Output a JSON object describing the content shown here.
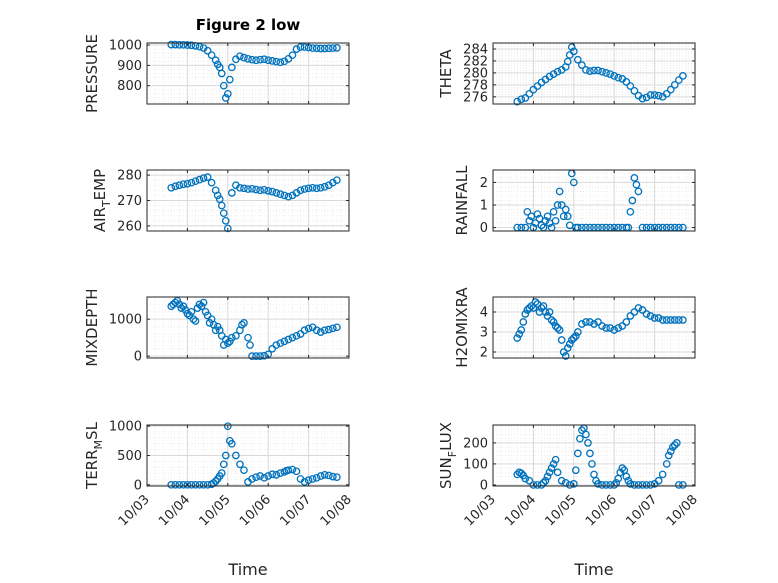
{
  "figure_title": "Figure 2 low",
  "marker_color": "#0072BD",
  "x_label": "Time",
  "x_ticks": [
    "10/03",
    "10/04",
    "10/05",
    "10/06",
    "10/07",
    "10/08"
  ],
  "grid": true,
  "chart_data": [
    {
      "type": "scatter",
      "ylabel": "PRESSURE",
      "title": "Figure 2 low",
      "xlim": [
        0,
        5
      ],
      "ylim": [
        710,
        1010
      ],
      "yticks": [
        800,
        900,
        1000
      ],
      "grid": true,
      "x": [
        0.6,
        0.7,
        0.8,
        0.9,
        1.0,
        1.1,
        1.2,
        1.3,
        1.4,
        1.5,
        1.6,
        1.7,
        1.75,
        1.8,
        1.85,
        1.9,
        1.95,
        2.0,
        2.05,
        2.1,
        2.2,
        2.3,
        2.4,
        2.5,
        2.6,
        2.7,
        2.8,
        2.9,
        3.0,
        3.1,
        3.2,
        3.3,
        3.4,
        3.5,
        3.6,
        3.7,
        3.8,
        3.9,
        4.0,
        4.1,
        4.2,
        4.3,
        4.4,
        4.5,
        4.6,
        4.7
      ],
      "y": [
        1002,
        1002,
        1001,
        1001,
        1000,
        999,
        996,
        992,
        985,
        972,
        950,
        925,
        905,
        890,
        860,
        800,
        740,
        760,
        830,
        890,
        930,
        945,
        938,
        932,
        928,
        925,
        928,
        930,
        925,
        922,
        918,
        915,
        920,
        932,
        950,
        980,
        990,
        990,
        988,
        985,
        984,
        983,
        983,
        984,
        985,
        986
      ]
    },
    {
      "type": "scatter",
      "ylabel": "THETA",
      "xlim": [
        0,
        5
      ],
      "ylim": [
        274.8,
        285
      ],
      "yticks": [
        276,
        278,
        280,
        282,
        284
      ],
      "grid": true,
      "x": [
        0.6,
        0.7,
        0.8,
        0.9,
        1.0,
        1.1,
        1.2,
        1.3,
        1.4,
        1.5,
        1.6,
        1.7,
        1.8,
        1.85,
        1.9,
        1.95,
        2.0,
        2.1,
        2.2,
        2.3,
        2.4,
        2.5,
        2.6,
        2.7,
        2.8,
        2.9,
        3.0,
        3.1,
        3.2,
        3.3,
        3.4,
        3.5,
        3.6,
        3.7,
        3.8,
        3.9,
        4.0,
        4.1,
        4.2,
        4.3,
        4.4,
        4.5,
        4.6,
        4.7
      ],
      "y": [
        275.2,
        275.6,
        275.8,
        276.5,
        277.2,
        277.8,
        278.4,
        278.9,
        279.4,
        279.8,
        280.2,
        280.5,
        281.0,
        281.9,
        283.0,
        284.3,
        283.6,
        282.2,
        281.3,
        280.5,
        280.3,
        280.4,
        280.4,
        280.2,
        280.0,
        279.8,
        279.5,
        279.2,
        279.0,
        278.5,
        277.8,
        277.0,
        276.2,
        275.7,
        275.9,
        276.3,
        276.3,
        276.2,
        276.0,
        276.5,
        277.2,
        278.0,
        278.8,
        279.5
      ]
    },
    {
      "type": "scatter",
      "ylabel": "AIR_TEMP",
      "xlim": [
        0,
        5
      ],
      "ylim": [
        258,
        282
      ],
      "yticks": [
        260,
        270,
        280
      ],
      "grid": true,
      "x": [
        0.6,
        0.7,
        0.8,
        0.9,
        1.0,
        1.1,
        1.2,
        1.3,
        1.4,
        1.5,
        1.6,
        1.7,
        1.75,
        1.8,
        1.85,
        1.9,
        1.95,
        2.0,
        2.1,
        2.2,
        2.3,
        2.4,
        2.5,
        2.6,
        2.7,
        2.8,
        2.9,
        3.0,
        3.1,
        3.2,
        3.3,
        3.4,
        3.5,
        3.6,
        3.7,
        3.8,
        3.9,
        4.0,
        4.1,
        4.2,
        4.3,
        4.4,
        4.5,
        4.6,
        4.7
      ],
      "y": [
        275.0,
        275.6,
        276.0,
        276.4,
        276.6,
        277.0,
        277.6,
        278.2,
        278.8,
        279.2,
        277.0,
        274.0,
        272.0,
        270.5,
        268.0,
        265.0,
        262.0,
        259.0,
        273.0,
        276.0,
        275.0,
        274.8,
        274.5,
        274.6,
        274.3,
        274.0,
        274.2,
        273.8,
        273.5,
        273.0,
        272.5,
        272.0,
        271.5,
        272.0,
        273.0,
        274.0,
        274.5,
        274.8,
        275.0,
        274.8,
        275.0,
        275.4,
        276.0,
        277.0,
        278.0
      ]
    },
    {
      "type": "scatter",
      "ylabel": "RAINFALL",
      "xlim": [
        0,
        5
      ],
      "ylim": [
        -0.15,
        2.55
      ],
      "yticks": [
        0,
        1,
        2
      ],
      "grid": true,
      "x": [
        0.6,
        0.7,
        0.8,
        0.85,
        0.9,
        0.95,
        1.0,
        1.05,
        1.1,
        1.15,
        1.2,
        1.25,
        1.3,
        1.35,
        1.4,
        1.45,
        1.5,
        1.55,
        1.6,
        1.65,
        1.7,
        1.75,
        1.8,
        1.85,
        1.9,
        1.95,
        2.0,
        2.05,
        2.1,
        2.2,
        2.3,
        2.4,
        2.5,
        2.6,
        2.7,
        2.8,
        2.9,
        3.0,
        3.1,
        3.2,
        3.3,
        3.35,
        3.4,
        3.45,
        3.5,
        3.55,
        3.6,
        3.7,
        3.8,
        3.9,
        4.0,
        4.1,
        4.2,
        4.3,
        4.4,
        4.5,
        4.6,
        4.7
      ],
      "y": [
        0,
        0,
        0,
        0.7,
        0.3,
        0.5,
        0,
        0.2,
        0.6,
        0.4,
        0.1,
        0,
        0.3,
        0.5,
        0.2,
        0,
        0.7,
        0.3,
        1.0,
        1.6,
        1.0,
        0.5,
        0.8,
        0.5,
        0.1,
        2.4,
        2.0,
        0,
        0,
        0,
        0,
        0,
        0,
        0,
        0,
        0,
        0,
        0,
        0,
        0,
        0,
        0,
        0.7,
        1.2,
        2.2,
        1.9,
        1.6,
        0,
        0,
        0,
        0,
        0,
        0,
        0,
        0,
        0,
        0,
        0
      ]
    },
    {
      "type": "scatter",
      "ylabel": "MIXDEPTH",
      "xlim": [
        0,
        5
      ],
      "ylim": [
        -50,
        1600
      ],
      "yticks": [
        0,
        1000
      ],
      "grid": true,
      "x": [
        0.6,
        0.65,
        0.7,
        0.75,
        0.8,
        0.85,
        0.9,
        0.95,
        1.0,
        1.05,
        1.1,
        1.15,
        1.2,
        1.25,
        1.3,
        1.35,
        1.4,
        1.45,
        1.5,
        1.55,
        1.6,
        1.65,
        1.7,
        1.75,
        1.8,
        1.85,
        1.9,
        1.95,
        2.0,
        2.05,
        2.1,
        2.2,
        2.3,
        2.35,
        2.4,
        2.5,
        2.55,
        2.6,
        2.7,
        2.8,
        2.9,
        3.0,
        3.1,
        3.2,
        3.3,
        3.4,
        3.5,
        3.6,
        3.7,
        3.8,
        3.9,
        4.0,
        4.1,
        4.2,
        4.3,
        4.4,
        4.5,
        4.6,
        4.7
      ],
      "y": [
        1350,
        1400,
        1450,
        1500,
        1400,
        1300,
        1350,
        1250,
        1150,
        1100,
        1200,
        1000,
        950,
        1300,
        1400,
        1350,
        1450,
        1200,
        1100,
        900,
        1000,
        850,
        700,
        800,
        700,
        550,
        300,
        450,
        350,
        400,
        500,
        550,
        700,
        850,
        900,
        500,
        300,
        0,
        0,
        0,
        10,
        50,
        200,
        300,
        350,
        400,
        450,
        500,
        550,
        600,
        700,
        750,
        780,
        700,
        650,
        700,
        720,
        750,
        780
      ]
    },
    {
      "type": "scatter",
      "ylabel": "H2OMIXRA",
      "xlim": [
        0,
        5
      ],
      "ylim": [
        1.7,
        4.75
      ],
      "yticks": [
        2,
        3,
        4
      ],
      "grid": true,
      "x": [
        0.6,
        0.65,
        0.7,
        0.75,
        0.8,
        0.85,
        0.9,
        0.95,
        1.0,
        1.05,
        1.1,
        1.15,
        1.2,
        1.25,
        1.3,
        1.35,
        1.4,
        1.45,
        1.5,
        1.55,
        1.6,
        1.65,
        1.7,
        1.75,
        1.8,
        1.85,
        1.9,
        1.95,
        2.0,
        2.05,
        2.1,
        2.2,
        2.3,
        2.4,
        2.5,
        2.6,
        2.7,
        2.8,
        2.9,
        3.0,
        3.1,
        3.2,
        3.3,
        3.4,
        3.5,
        3.6,
        3.7,
        3.8,
        3.9,
        4.0,
        4.1,
        4.2,
        4.3,
        4.4,
        4.5,
        4.6,
        4.7
      ],
      "y": [
        2.7,
        2.9,
        3.1,
        3.5,
        3.9,
        4.1,
        4.2,
        4.3,
        4.2,
        4.5,
        4.4,
        4.0,
        4.2,
        4.3,
        4.0,
        3.8,
        4.0,
        3.6,
        3.5,
        3.3,
        3.2,
        3.1,
        2.6,
        2.0,
        1.8,
        2.2,
        2.4,
        2.6,
        2.7,
        2.8,
        3.0,
        3.4,
        3.5,
        3.5,
        3.4,
        3.5,
        3.3,
        3.2,
        3.2,
        3.1,
        3.2,
        3.3,
        3.5,
        3.8,
        4.0,
        4.2,
        4.1,
        3.9,
        3.8,
        3.7,
        3.7,
        3.6,
        3.6,
        3.6,
        3.6,
        3.6,
        3.6
      ]
    },
    {
      "type": "scatter",
      "ylabel": "TERR_MSL",
      "xlim": [
        0,
        5
      ],
      "ylim": [
        -20,
        1020
      ],
      "yticks": [
        0,
        500,
        1000
      ],
      "grid": true,
      "x": [
        0.6,
        0.7,
        0.8,
        0.9,
        1.0,
        1.1,
        1.2,
        1.3,
        1.4,
        1.5,
        1.6,
        1.65,
        1.7,
        1.75,
        1.8,
        1.85,
        1.9,
        1.95,
        2.0,
        2.05,
        2.1,
        2.2,
        2.3,
        2.4,
        2.5,
        2.6,
        2.7,
        2.8,
        2.9,
        3.0,
        3.1,
        3.2,
        3.3,
        3.4,
        3.45,
        3.5,
        3.6,
        3.7,
        3.8,
        3.9,
        4.0,
        4.1,
        4.2,
        4.3,
        4.4,
        4.5,
        4.6,
        4.7
      ],
      "y": [
        0,
        0,
        0,
        0,
        0,
        0,
        0,
        0,
        0,
        0,
        10,
        30,
        60,
        100,
        150,
        200,
        350,
        500,
        1000,
        750,
        700,
        500,
        350,
        250,
        50,
        100,
        130,
        150,
        120,
        150,
        180,
        170,
        200,
        220,
        240,
        250,
        260,
        230,
        100,
        50,
        80,
        100,
        120,
        150,
        170,
        160,
        140,
        130
      ]
    },
    {
      "type": "scatter",
      "ylabel": "SUN_FLUX",
      "xlim": [
        0,
        5
      ],
      "ylim": [
        -5,
        285
      ],
      "yticks": [
        0,
        100,
        200
      ],
      "grid": true,
      "x": [
        0.6,
        0.65,
        0.7,
        0.75,
        0.8,
        0.9,
        1.0,
        1.1,
        1.2,
        1.25,
        1.3,
        1.35,
        1.4,
        1.45,
        1.5,
        1.55,
        1.6,
        1.7,
        1.8,
        1.9,
        2.0,
        2.05,
        2.1,
        2.15,
        2.2,
        2.25,
        2.3,
        2.35,
        2.4,
        2.45,
        2.5,
        2.55,
        2.6,
        2.7,
        2.8,
        2.9,
        3.0,
        3.05,
        3.1,
        3.15,
        3.2,
        3.25,
        3.3,
        3.35,
        3.4,
        3.5,
        3.6,
        3.7,
        3.8,
        3.9,
        4.0,
        4.1,
        4.2,
        4.3,
        4.35,
        4.4,
        4.45,
        4.5,
        4.55,
        4.6,
        4.7
      ],
      "y": [
        50,
        60,
        55,
        45,
        30,
        20,
        0,
        0,
        0,
        10,
        20,
        40,
        60,
        80,
        100,
        120,
        60,
        20,
        10,
        0,
        5,
        70,
        150,
        220,
        260,
        270,
        240,
        200,
        150,
        100,
        50,
        20,
        5,
        0,
        0,
        0,
        0,
        10,
        30,
        60,
        80,
        70,
        40,
        20,
        5,
        0,
        0,
        0,
        0,
        0,
        5,
        20,
        50,
        100,
        140,
        160,
        180,
        190,
        200,
        0,
        0
      ]
    }
  ]
}
